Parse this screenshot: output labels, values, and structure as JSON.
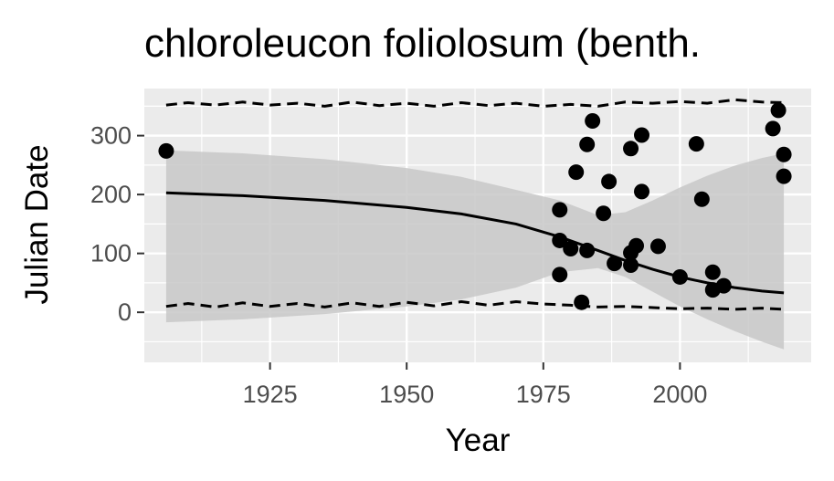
{
  "chart_data": {
    "type": "scatter",
    "title": "chloroleucon foliolosum (benth.",
    "xlabel": "Year",
    "ylabel": "Julian Date",
    "xlim": [
      1902,
      2024
    ],
    "ylim": [
      -85,
      380
    ],
    "x_ticks": [
      1925,
      1950,
      1975,
      2000
    ],
    "y_ticks": [
      0,
      100,
      200,
      300
    ],
    "grid": true,
    "legend": "none",
    "colors": {
      "panel": "#ebebeb",
      "grid": "#ffffff",
      "points": "#000000",
      "ribbon": "#c8c8c8",
      "line": "#000000",
      "tick_label": "#4d4d4d"
    },
    "points": [
      {
        "x": 1906,
        "y": 274
      },
      {
        "x": 1978,
        "y": 174
      },
      {
        "x": 1978,
        "y": 122
      },
      {
        "x": 1978,
        "y": 64
      },
      {
        "x": 1980,
        "y": 108
      },
      {
        "x": 1981,
        "y": 238
      },
      {
        "x": 1982,
        "y": 17
      },
      {
        "x": 1983,
        "y": 285
      },
      {
        "x": 1983,
        "y": 105
      },
      {
        "x": 1984,
        "y": 325
      },
      {
        "x": 1986,
        "y": 168
      },
      {
        "x": 1987,
        "y": 222
      },
      {
        "x": 1988,
        "y": 83
      },
      {
        "x": 1991,
        "y": 278
      },
      {
        "x": 1991,
        "y": 101
      },
      {
        "x": 1991,
        "y": 80
      },
      {
        "x": 1992,
        "y": 113
      },
      {
        "x": 1993,
        "y": 301
      },
      {
        "x": 1993,
        "y": 205
      },
      {
        "x": 1996,
        "y": 112
      },
      {
        "x": 2000,
        "y": 60
      },
      {
        "x": 2003,
        "y": 286
      },
      {
        "x": 2004,
        "y": 192
      },
      {
        "x": 2006,
        "y": 68
      },
      {
        "x": 2006,
        "y": 38
      },
      {
        "x": 2008,
        "y": 45
      },
      {
        "x": 2017,
        "y": 312
      },
      {
        "x": 2018,
        "y": 343
      },
      {
        "x": 2019,
        "y": 268
      },
      {
        "x": 2019,
        "y": 231
      }
    ],
    "fit": {
      "x": [
        1906,
        1920,
        1935,
        1950,
        1960,
        1970,
        1978,
        1985,
        1990,
        1995,
        2000,
        2005,
        2010,
        2015,
        2019
      ],
      "y": [
        203,
        198,
        190,
        178,
        167,
        150,
        128,
        105,
        88,
        73,
        60,
        50,
        42,
        36,
        33
      ],
      "lower": [
        -17,
        -12,
        -3,
        10,
        22,
        42,
        68,
        75,
        60,
        35,
        10,
        -12,
        -32,
        -50,
        -63
      ],
      "upper": [
        275,
        270,
        260,
        245,
        230,
        208,
        190,
        165,
        170,
        190,
        212,
        232,
        249,
        262,
        270
      ]
    },
    "bounds": {
      "x": [
        1906,
        1910,
        1915,
        1920,
        1925,
        1930,
        1935,
        1940,
        1945,
        1950,
        1955,
        1960,
        1965,
        1970,
        1975,
        1980,
        1985,
        1990,
        1995,
        2000,
        2005,
        2010,
        2015,
        2019
      ],
      "upper": [
        352,
        356,
        352,
        357,
        352,
        355,
        350,
        357,
        351,
        355,
        350,
        356,
        351,
        355,
        350,
        353,
        350,
        357,
        355,
        358,
        355,
        361,
        357,
        356
      ],
      "lower": [
        10,
        15,
        9,
        16,
        10,
        15,
        9,
        16,
        10,
        17,
        11,
        18,
        12,
        18,
        14,
        12,
        9,
        10,
        8,
        6,
        7,
        5,
        7,
        5
      ]
    }
  }
}
